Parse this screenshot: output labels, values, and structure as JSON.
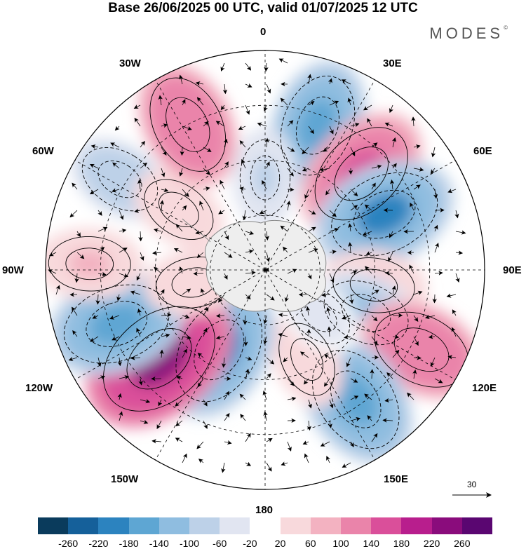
{
  "title": "Base 26/06/2025 00 UTC, valid 01/07/2025 12 UTC",
  "brand": "MODES",
  "brand_mark": "©",
  "lon_labels": {
    "l0": "0",
    "l30e": "30E",
    "l60e": "60E",
    "l90e": "90E",
    "l120e": "120E",
    "l150e": "150E",
    "l180": "180",
    "l150w": "150W",
    "l120w": "120W",
    "l90w": "90W",
    "l60w": "60W",
    "l30w": "30W"
  },
  "vector_scale": "30",
  "colorbar": {
    "colors": [
      "#0a3b5c",
      "#15609a",
      "#2c83bf",
      "#5ea6d3",
      "#8fbde0",
      "#bdd1e8",
      "#e1e5f1",
      "#ffffff",
      "#f8d9dc",
      "#f3b2c1",
      "#ea84aa",
      "#da4f9a",
      "#b81e8d",
      "#8a0c7c",
      "#5a0671"
    ],
    "ticks": [
      "-260",
      "-220",
      "-180",
      "-140",
      "-100",
      "-60",
      "-20",
      "20",
      "60",
      "100",
      "140",
      "180",
      "220",
      "260"
    ]
  },
  "map": {
    "description_colors": {
      "land": "#eeeeee",
      "coast": "#888888",
      "grid": "#000000"
    },
    "anomalies": [
      {
        "lon": 20,
        "r": 0.7,
        "value": -150
      },
      {
        "lon": 45,
        "r": 0.62,
        "value": 170
      },
      {
        "lon": 65,
        "r": 0.6,
        "value": -180
      },
      {
        "lon": 98,
        "r": 0.5,
        "value": 80
      },
      {
        "lon": 113,
        "r": 0.5,
        "value": -100
      },
      {
        "lon": 117,
        "r": 0.8,
        "value": 140
      },
      {
        "lon": 145,
        "r": 0.72,
        "value": -170
      },
      {
        "lon": 155,
        "r": 0.45,
        "value": 60
      },
      {
        "lon": -150,
        "r": 0.42,
        "value": -180
      },
      {
        "lon": -130,
        "r": 0.63,
        "value": 230
      },
      {
        "lon": -110,
        "r": 0.72,
        "value": -170
      },
      {
        "lon": -88,
        "r": 0.8,
        "value": 80
      },
      {
        "lon": -58,
        "r": 0.78,
        "value": -80
      },
      {
        "lon": -55,
        "r": 0.48,
        "value": 60
      },
      {
        "lon": -28,
        "r": 0.75,
        "value": 140
      },
      {
        "lon": 0,
        "r": 0.42,
        "value": -60
      },
      {
        "lon": -100,
        "r": 0.33,
        "value": 60
      },
      {
        "lon": 130,
        "r": 0.32,
        "value": -40
      }
    ]
  }
}
